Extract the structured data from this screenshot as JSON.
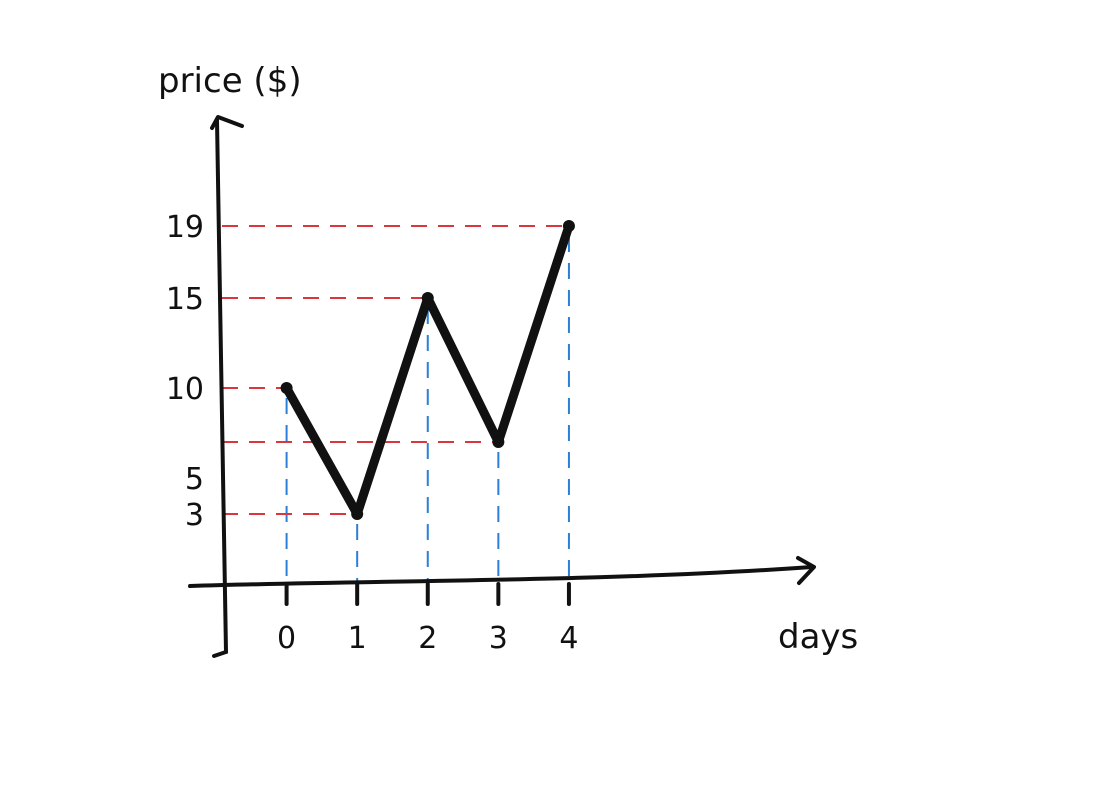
{
  "chart_data": {
    "type": "line",
    "ylabel": "price ($)",
    "xlabel": "days",
    "x": [
      0,
      1,
      2,
      3,
      4
    ],
    "series": [
      {
        "values": [
          10,
          3,
          15,
          7,
          19
        ]
      }
    ],
    "x_tick_labels": [
      "0",
      "1",
      "2",
      "3",
      "4"
    ],
    "y_tick_values": [
      3,
      5,
      10,
      15,
      19
    ],
    "y_tick_labels": [
      "3",
      "5",
      "10",
      "15",
      "19"
    ],
    "xlim": [
      -1,
      7.5
    ],
    "ylim": [
      -1,
      25
    ],
    "grid": false,
    "colors": {
      "line": "#111111",
      "axes": "#111111",
      "horizontal_guides": "#d9363e",
      "vertical_guides": "#2b7fd6"
    }
  }
}
